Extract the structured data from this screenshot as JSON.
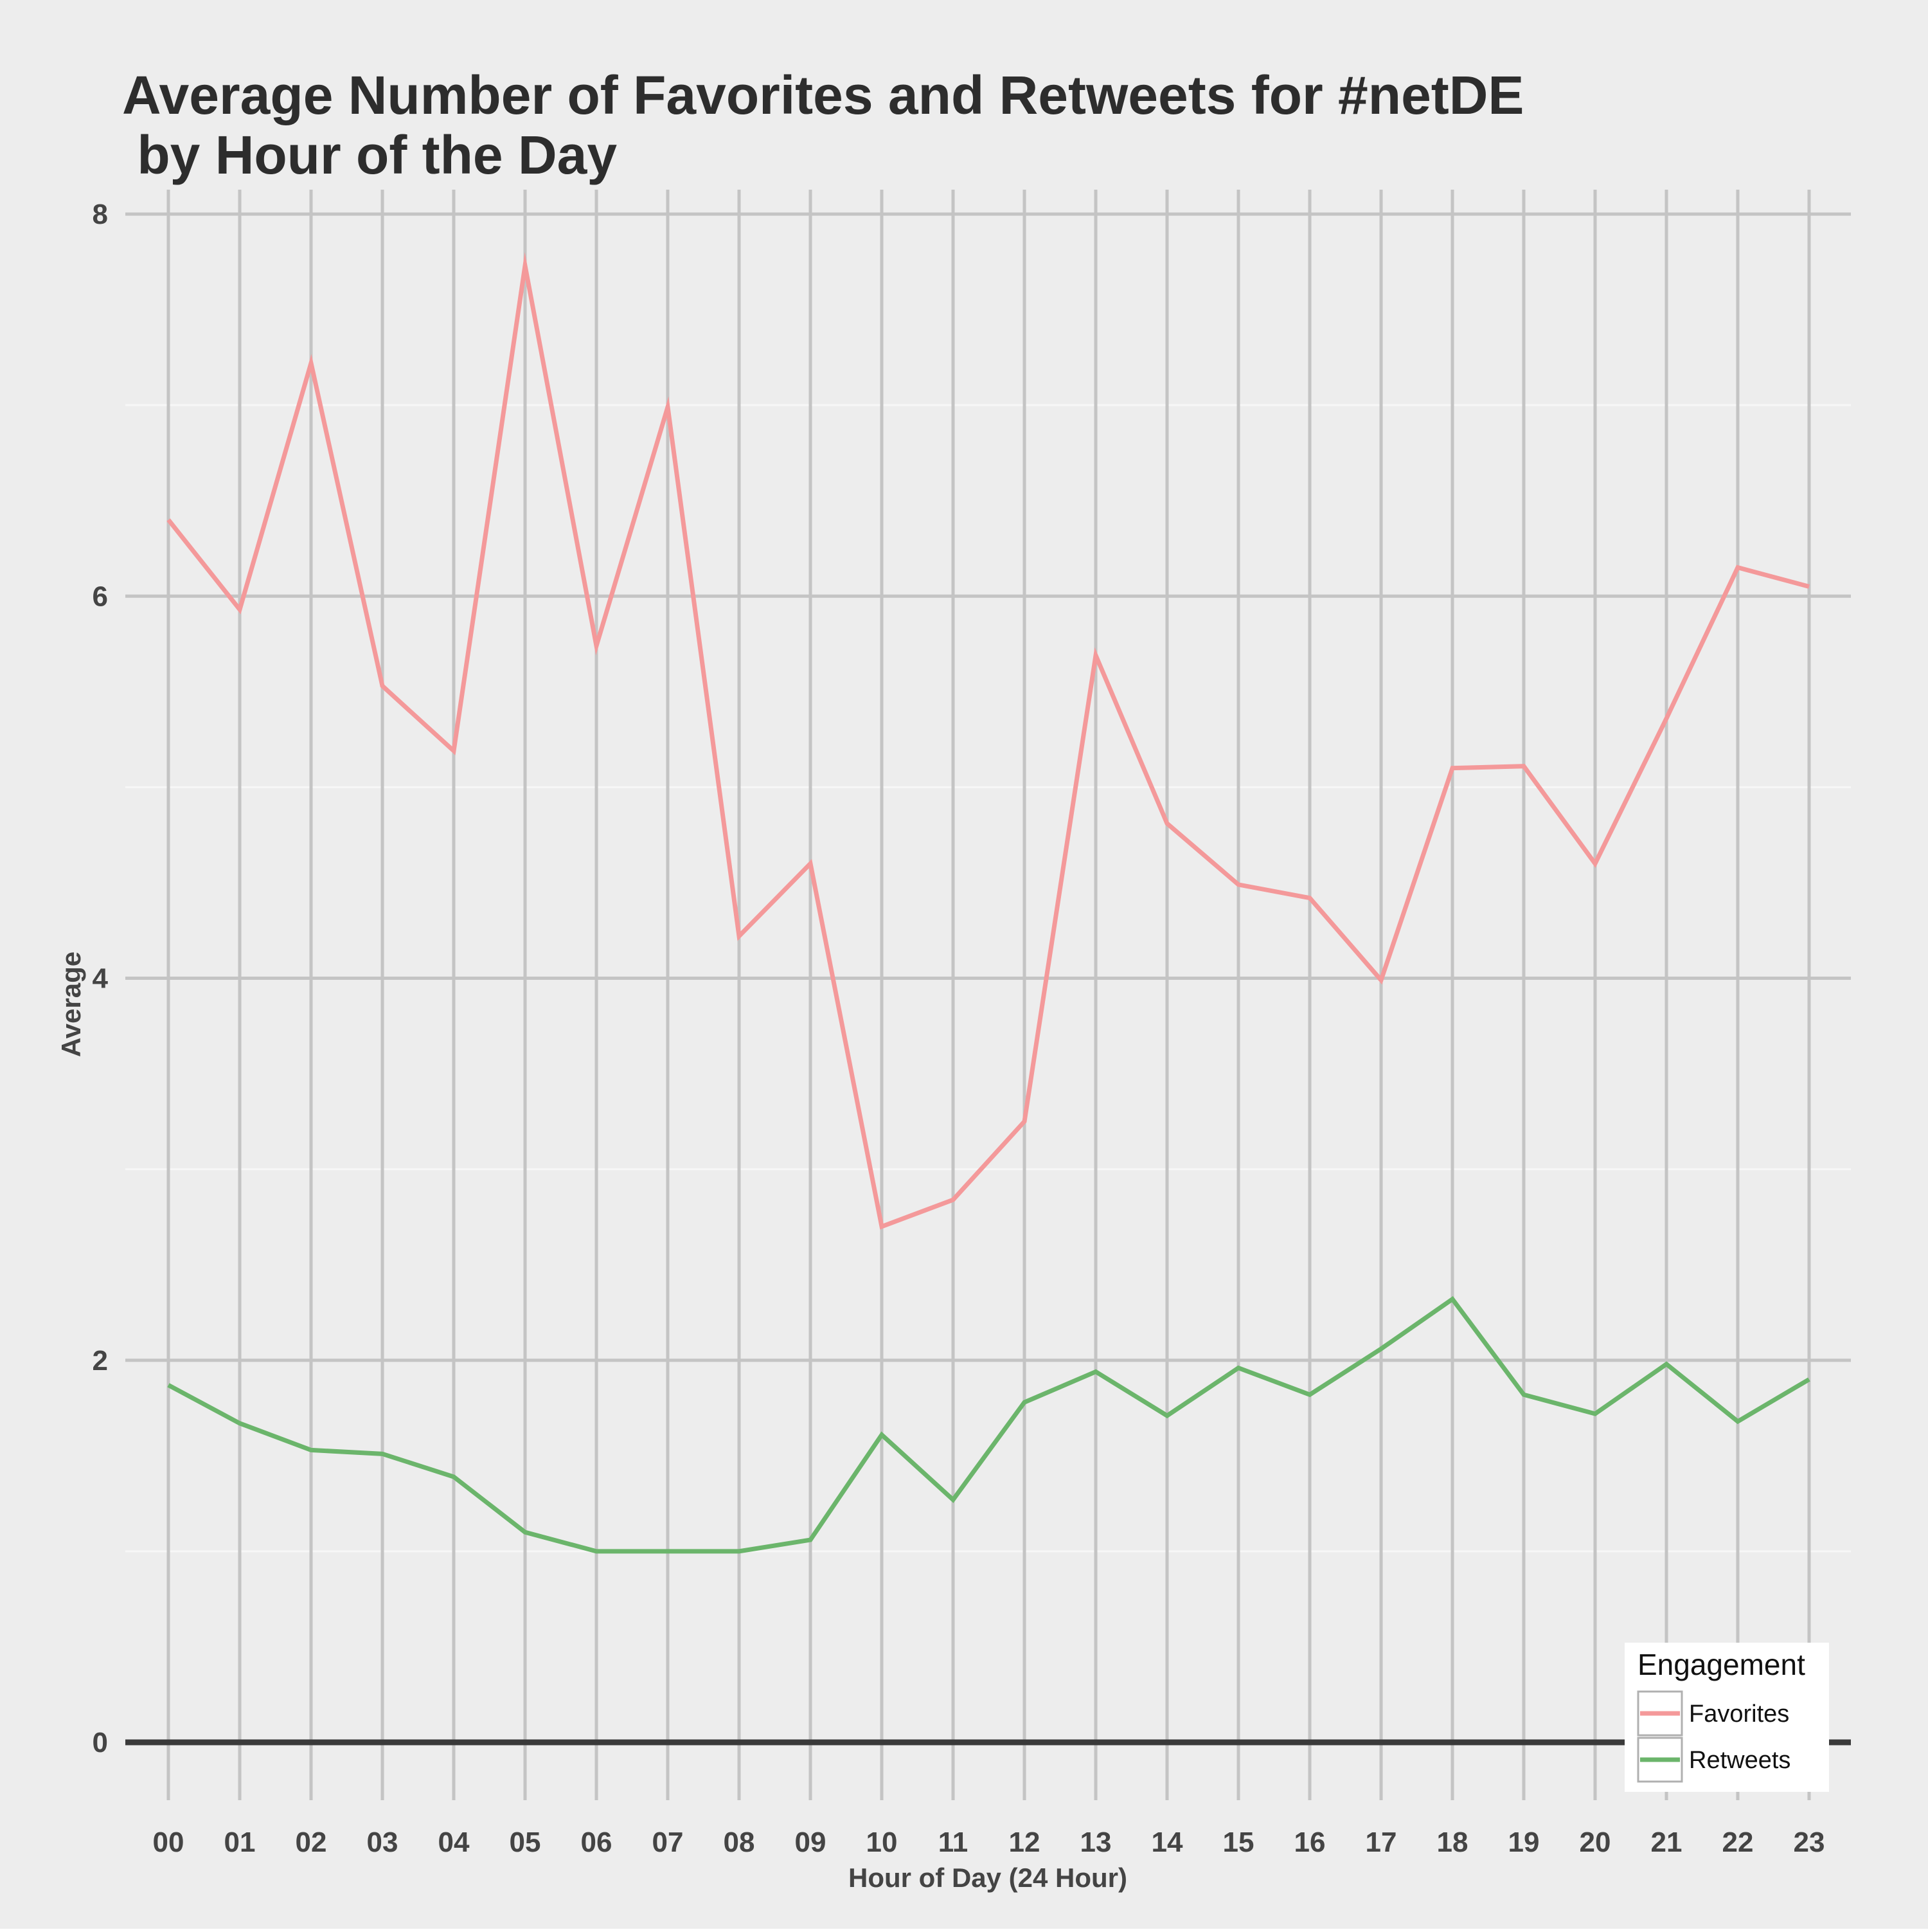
{
  "chart_data": {
    "type": "line",
    "title_lines": [
      "Average Number of Favorites and Retweets for #netDE",
      " by Hour of the Day"
    ],
    "xlabel": "Hour of Day (24 Hour)",
    "ylabel": "Average",
    "categories": [
      "00",
      "01",
      "02",
      "03",
      "04",
      "05",
      "06",
      "07",
      "08",
      "09",
      "10",
      "11",
      "12",
      "13",
      "14",
      "15",
      "16",
      "17",
      "18",
      "19",
      "20",
      "21",
      "22",
      "23"
    ],
    "ylim": [
      -0.5,
      8.1
    ],
    "yticks": [
      0,
      2,
      4,
      6,
      8
    ],
    "grid": true,
    "legend": {
      "title": "Engagement",
      "position": "bottom-right"
    },
    "series": [
      {
        "name": "Favorites",
        "color": "#f4999a",
        "values": [
          6.4,
          5.93,
          7.22,
          5.53,
          5.19,
          7.73,
          5.74,
          6.99,
          4.22,
          4.6,
          2.7,
          2.84,
          3.25,
          5.69,
          4.81,
          4.49,
          4.42,
          3.99,
          5.1,
          5.11,
          4.6,
          5.36,
          6.15,
          6.05
        ]
      },
      {
        "name": "Retweets",
        "color": "#6bb56b",
        "values": [
          1.87,
          1.67,
          1.53,
          1.51,
          1.39,
          1.1,
          1.0,
          1.0,
          1.0,
          1.06,
          1.61,
          1.27,
          1.78,
          1.94,
          1.71,
          1.96,
          1.82,
          2.06,
          2.32,
          1.82,
          1.72,
          1.98,
          1.68,
          1.9
        ]
      }
    ]
  },
  "colors": {
    "panel_background": "#ededed",
    "major_grid": "#c4c4c4",
    "minor_grid": "#f7f7f7",
    "zero_line": "#3a3a3a",
    "legend_background": "#ffffff"
  }
}
